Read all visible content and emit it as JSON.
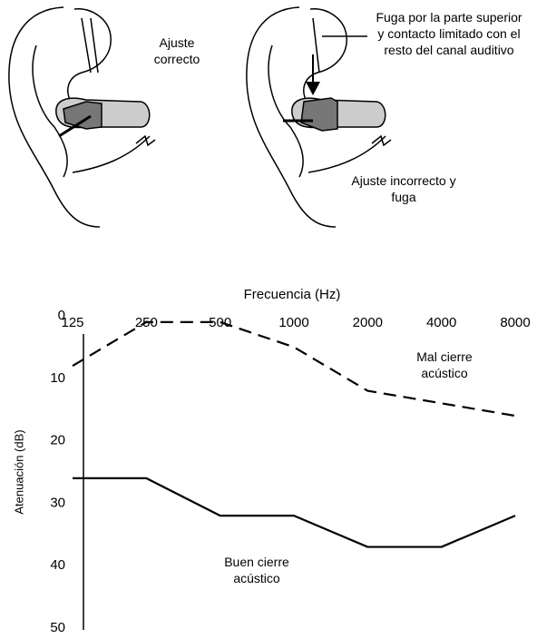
{
  "figures": [
    {
      "label": "Ajuste correcto"
    },
    {
      "label": "Fuga por la parte superior y contacto limitado con el resto del canal auditivo"
    },
    {
      "label": "Ajuste incorrecto y fuga"
    }
  ],
  "chart_data": {
    "type": "line",
    "xlabel": "Frecuencia (Hz)",
    "ylabel": "Atenuación (dB)",
    "categories": [
      "125",
      "250",
      "500",
      "1000",
      "2000",
      "4000",
      "8000"
    ],
    "series": [
      {
        "name": "Mal cierre acústico",
        "color": "#000000",
        "style": "dashed",
        "values": [
          8,
          1,
          1,
          5,
          12,
          14,
          16
        ]
      },
      {
        "name": "Buen cierre acústico",
        "color": "#000000",
        "style": "solid",
        "values": [
          26,
          26,
          32,
          32,
          37,
          37,
          32
        ]
      }
    ],
    "ylim": [
      0,
      50
    ],
    "yticks": [
      0,
      10,
      20,
      30,
      40,
      50
    ],
    "y_reversed": true,
    "grid": false
  }
}
